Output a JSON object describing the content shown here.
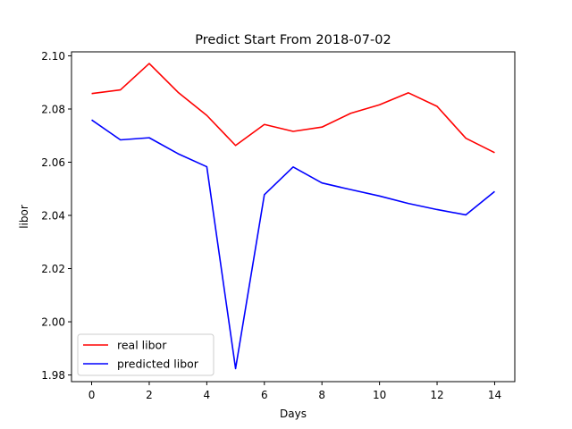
{
  "chart_data": {
    "type": "line",
    "title": "Predict Start From 2018-07-02",
    "xlabel": "Days",
    "ylabel": "libor",
    "xlim": [
      -0.7,
      14.7
    ],
    "ylim": [
      1.9775,
      2.1015
    ],
    "xticks": [
      0,
      2,
      4,
      6,
      8,
      10,
      12,
      14
    ],
    "xtick_labels": [
      "0",
      "2",
      "4",
      "6",
      "8",
      "10",
      "12",
      "14"
    ],
    "yticks": [
      1.98,
      2.0,
      2.02,
      2.04,
      2.06,
      2.08,
      2.1
    ],
    "ytick_labels": [
      "1.98",
      "2.00",
      "2.02",
      "2.04",
      "2.06",
      "2.08",
      "2.10"
    ],
    "grid": false,
    "legend": {
      "position": "lower-left",
      "entries": [
        "real libor",
        "predicted libor"
      ]
    },
    "x": [
      0,
      1,
      2,
      3,
      4,
      5,
      6,
      7,
      8,
      9,
      10,
      11,
      12,
      13,
      14
    ],
    "series": [
      {
        "name": "real libor",
        "color": "#ff0000",
        "values": [
          2.0858,
          2.0872,
          2.0971,
          2.0863,
          2.0776,
          2.0663,
          2.0742,
          2.0716,
          2.0732,
          2.0784,
          2.0816,
          2.0861,
          2.081,
          2.069,
          2.0636
        ]
      },
      {
        "name": "predicted libor",
        "color": "#0000ff",
        "values": [
          2.0759,
          2.0684,
          2.0692,
          2.0632,
          2.0583,
          1.9824,
          2.0478,
          2.0582,
          2.0522,
          2.0497,
          2.0473,
          2.0445,
          2.0422,
          2.0402,
          2.049
        ]
      }
    ]
  }
}
